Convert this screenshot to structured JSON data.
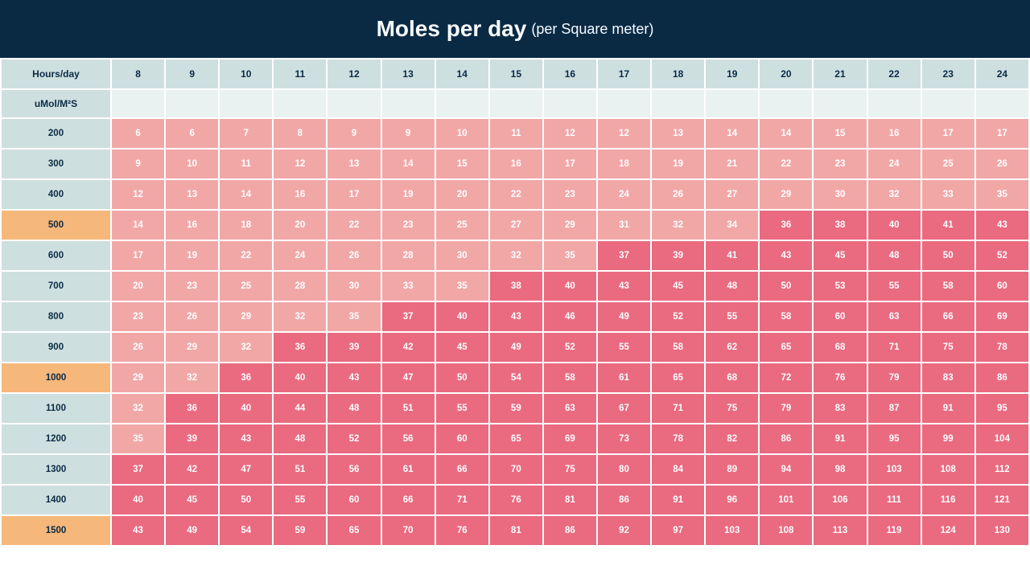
{
  "title": {
    "main": "Moles per day",
    "sub": "(per Square meter)",
    "main_fontsize": 28,
    "sub_fontsize": 18,
    "color": "#f7fbff"
  },
  "header": {
    "background_color": "#0a2a44",
    "height": 72
  },
  "table": {
    "corner_label": "Hours/day",
    "unit_label_html": "uMol/M²S",
    "columns": [
      8,
      9,
      10,
      11,
      12,
      13,
      14,
      15,
      16,
      17,
      18,
      19,
      20,
      21,
      22,
      23,
      24
    ],
    "row_headers": [
      200,
      300,
      400,
      500,
      600,
      700,
      800,
      900,
      1000,
      1100,
      1200,
      1300,
      1400,
      1500
    ],
    "rows": [
      [
        6,
        6,
        7,
        8,
        9,
        9,
        10,
        11,
        12,
        12,
        13,
        14,
        14,
        15,
        16,
        17,
        17
      ],
      [
        9,
        10,
        11,
        12,
        13,
        14,
        15,
        16,
        17,
        18,
        19,
        21,
        22,
        23,
        24,
        25,
        26
      ],
      [
        12,
        13,
        14,
        16,
        17,
        19,
        20,
        22,
        23,
        24,
        26,
        27,
        29,
        30,
        32,
        33,
        35
      ],
      [
        14,
        16,
        18,
        20,
        22,
        23,
        25,
        27,
        29,
        31,
        32,
        34,
        36,
        38,
        40,
        41,
        43
      ],
      [
        17,
        19,
        22,
        24,
        26,
        28,
        30,
        32,
        35,
        37,
        39,
        41,
        43,
        45,
        48,
        50,
        52
      ],
      [
        20,
        23,
        25,
        28,
        30,
        33,
        35,
        38,
        40,
        43,
        45,
        48,
        50,
        53,
        55,
        58,
        60
      ],
      [
        23,
        26,
        29,
        32,
        35,
        37,
        40,
        43,
        46,
        49,
        52,
        55,
        58,
        60,
        63,
        66,
        69
      ],
      [
        26,
        29,
        32,
        36,
        39,
        42,
        45,
        49,
        52,
        55,
        58,
        62,
        65,
        68,
        71,
        75,
        78
      ],
      [
        29,
        32,
        36,
        40,
        43,
        47,
        50,
        54,
        58,
        61,
        65,
        68,
        72,
        76,
        79,
        83,
        86
      ],
      [
        32,
        36,
        40,
        44,
        48,
        51,
        55,
        59,
        63,
        67,
        71,
        75,
        79,
        83,
        87,
        91,
        95
      ],
      [
        35,
        39,
        43,
        48,
        52,
        56,
        60,
        65,
        69,
        73,
        78,
        82,
        86,
        91,
        95,
        99,
        104
      ],
      [
        37,
        42,
        47,
        51,
        56,
        61,
        66,
        70,
        75,
        80,
        84,
        89,
        94,
        98,
        103,
        108,
        112
      ],
      [
        40,
        45,
        50,
        55,
        60,
        66,
        71,
        76,
        81,
        86,
        91,
        96,
        101,
        106,
        111,
        116,
        121
      ],
      [
        43,
        49,
        54,
        59,
        65,
        70,
        76,
        81,
        86,
        92,
        97,
        103,
        108,
        113,
        119,
        124,
        130
      ]
    ],
    "colors": {
      "col_header_bg": "#cedfe0",
      "col_header_text": "#0a2a44",
      "row_header_bg_default": "#cedfe0",
      "row_header_bg_highlight": "#f6b77a",
      "row_header_text": "#0a2a44",
      "highlighted_rows": [
        500,
        1000,
        1500
      ],
      "unit_row_bg": "#e9f1f1",
      "cell_text": "#ffffff",
      "heatmap": {
        "threshold": 36,
        "low_color": "#f2a7a7",
        "high_color": "#ea6a7f"
      }
    },
    "fontsize": {
      "header": 12,
      "cell": 11.5
    }
  }
}
